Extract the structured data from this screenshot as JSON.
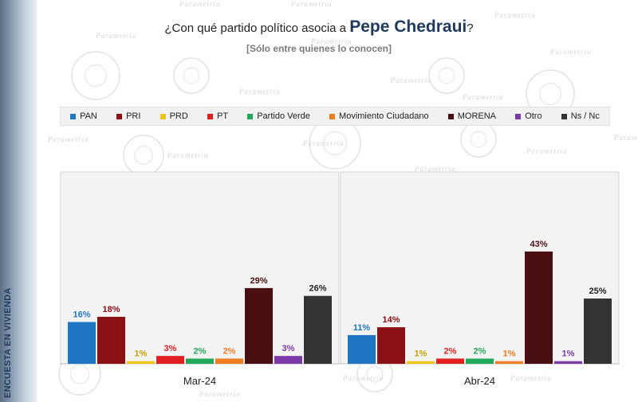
{
  "title_prefix": "¿Con qué partido político asocia a ",
  "title_name": "Pepe Chedraui",
  "title_suffix": "?",
  "subtitle": "[Sólo entre quienes lo conocen]",
  "side_label": "ENCUESTA EN VIVIENDA",
  "watermark": "Parametría",
  "chart_data": {
    "type": "bar",
    "title": "¿Con qué partido político asocia a Pepe Chedraui?",
    "subtitle": "[Sólo entre quienes lo conocen]",
    "categories": [
      "Mar-24",
      "Abr-24"
    ],
    "series": [
      {
        "name": "PAN",
        "color": "#1f77c4",
        "values": [
          16,
          11
        ],
        "labels": [
          "16%",
          "11%"
        ],
        "label_color": "#1f77c4"
      },
      {
        "name": "PRI",
        "color": "#8b1114",
        "values": [
          18,
          14
        ],
        "labels": [
          "18%",
          "14%"
        ],
        "label_color": "#8b1114"
      },
      {
        "name": "PRD",
        "color": "#f0c419",
        "values": [
          1,
          1
        ],
        "labels": [
          "1%",
          "1%"
        ],
        "label_color": "#c9a100"
      },
      {
        "name": "PT",
        "color": "#e02020",
        "values": [
          3,
          2
        ],
        "labels": [
          "3%",
          "2%"
        ],
        "label_color": "#e02020"
      },
      {
        "name": "Partido Verde",
        "color": "#23a85a",
        "values": [
          2,
          2
        ],
        "labels": [
          "2%",
          "2%"
        ],
        "label_color": "#23a85a"
      },
      {
        "name": "Movimiento Ciudadano",
        "color": "#ef7d22",
        "values": [
          2,
          1
        ],
        "labels": [
          "2%",
          "1%"
        ],
        "label_color": "#ef7d22"
      },
      {
        "name": "MORENA",
        "color": "#4a0f12",
        "values": [
          29,
          43
        ],
        "labels": [
          "29%",
          "43%"
        ],
        "label_color": "#4a0f12"
      },
      {
        "name": "Otro",
        "color": "#7b3aa8",
        "values": [
          3,
          1
        ],
        "labels": [
          "3%",
          "1%"
        ],
        "label_color": "#7b3aa8"
      },
      {
        "name": "Ns / Nc",
        "color": "#333333",
        "values": [
          26,
          25
        ],
        "labels": [
          "26%",
          "25%"
        ],
        "label_color": "#222222"
      }
    ],
    "ylim": [
      0,
      50
    ],
    "grid": false,
    "legend_position": "top"
  }
}
